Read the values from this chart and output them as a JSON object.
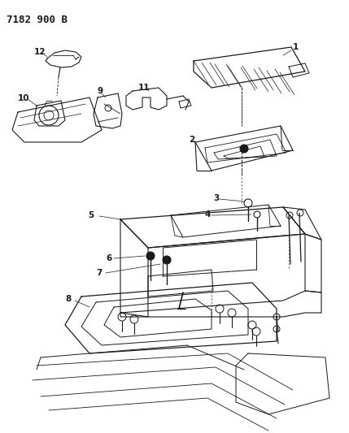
{
  "title": "7182 900 B",
  "bg_color": "#ffffff",
  "line_color": "#1a1a1a",
  "title_fontsize": 9,
  "label_fontsize": 7.5,
  "fig_w": 4.29,
  "fig_h": 5.33,
  "dpi": 100
}
